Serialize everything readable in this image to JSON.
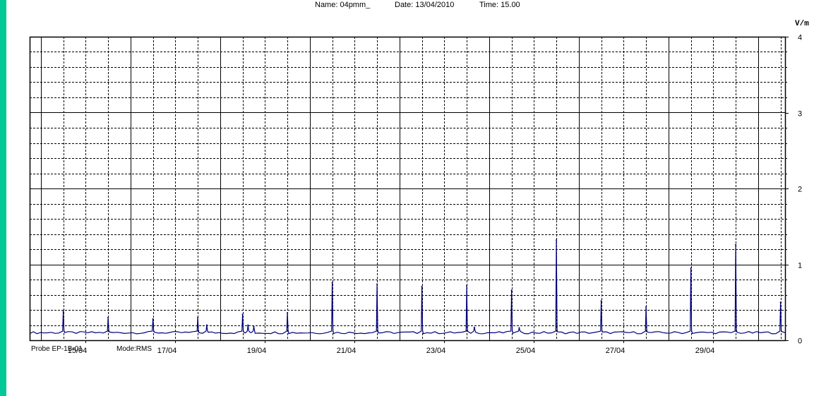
{
  "header": {
    "name": "Name: 04pmm_",
    "date": "Date: 13/04/2010",
    "time": "Time: 15.00"
  },
  "footer": {
    "probe": "Probe EP-1B-01",
    "mode": "Mode:RMS"
  },
  "colors": {
    "frame_background": "#00c896",
    "plot_line": "#00007a",
    "grid": "#000000"
  },
  "chart_data": {
    "type": "line",
    "title": "",
    "xlabel": "",
    "ylabel": "V/m",
    "y_axis_side": "right",
    "ylim": [
      0,
      4
    ],
    "yticks": [
      0,
      1,
      2,
      3,
      4
    ],
    "y_minor_step": 0.2,
    "xlim": [
      13.75,
      30.6
    ],
    "xticks": [
      {
        "value": 15,
        "label": "15/04"
      },
      {
        "value": 17,
        "label": "17/04"
      },
      {
        "value": 19,
        "label": "19/04"
      },
      {
        "value": 21,
        "label": "21/04"
      },
      {
        "value": 23,
        "label": "23/04"
      },
      {
        "value": 25,
        "label": "25/04"
      },
      {
        "value": 27,
        "label": "27/04"
      },
      {
        "value": 29,
        "label": "29/04"
      }
    ],
    "x_minor_step": 0.5,
    "x_unit": "day of April 2010",
    "grid": true,
    "baseline": 0.1,
    "series": [
      {
        "peaks": [
          {
            "x": 14.5,
            "y": 0.38
          },
          {
            "x": 15.5,
            "y": 0.3
          },
          {
            "x": 16.5,
            "y": 0.28
          },
          {
            "x": 17.5,
            "y": 0.3
          },
          {
            "x": 17.7,
            "y": 0.2
          },
          {
            "x": 18.5,
            "y": 0.34
          },
          {
            "x": 18.62,
            "y": 0.2
          },
          {
            "x": 18.75,
            "y": 0.18
          },
          {
            "x": 19.5,
            "y": 0.36
          },
          {
            "x": 20.5,
            "y": 0.76
          },
          {
            "x": 21.5,
            "y": 0.74
          },
          {
            "x": 22.5,
            "y": 0.71
          },
          {
            "x": 23.5,
            "y": 0.72
          },
          {
            "x": 23.67,
            "y": 0.17
          },
          {
            "x": 24.5,
            "y": 0.66
          },
          {
            "x": 24.67,
            "y": 0.16
          },
          {
            "x": 25.5,
            "y": 1.32
          },
          {
            "x": 26.5,
            "y": 0.52
          },
          {
            "x": 27.5,
            "y": 0.44
          },
          {
            "x": 28.5,
            "y": 0.95
          },
          {
            "x": 29.5,
            "y": 1.26
          },
          {
            "x": 30.5,
            "y": 0.5
          }
        ]
      }
    ]
  }
}
